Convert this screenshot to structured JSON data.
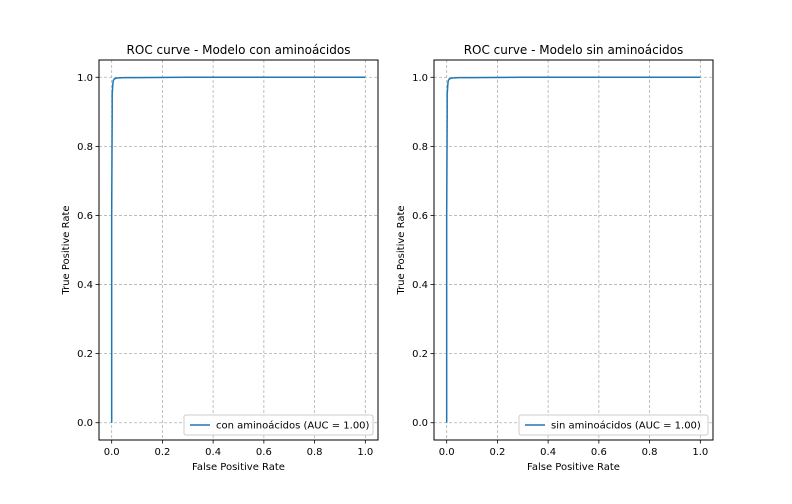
{
  "figure": {
    "background": "#ffffff"
  },
  "chart_data": [
    {
      "type": "line",
      "title": "ROC curve - Modelo con aminoácidos",
      "xlabel": "False Positive Rate",
      "ylabel": "True Positive Rate",
      "xlim": [
        -0.05,
        1.05
      ],
      "ylim": [
        -0.05,
        1.05
      ],
      "xticks": [
        0.0,
        0.2,
        0.4,
        0.6,
        0.8,
        1.0
      ],
      "yticks": [
        0.0,
        0.2,
        0.4,
        0.6,
        0.8,
        1.0
      ],
      "tick_labels_x": [
        "0.0",
        "0.2",
        "0.4",
        "0.6",
        "0.8",
        "1.0"
      ],
      "tick_labels_y": [
        "0.0",
        "0.2",
        "0.4",
        "0.6",
        "0.8",
        "1.0"
      ],
      "grid": true,
      "grid_style": "dashed",
      "legend_position": "lower-right",
      "series": [
        {
          "name": "con aminoácidos (AUC = 1.00)",
          "color": "#1f77b4",
          "x": [
            0.0,
            0.0,
            0.002,
            0.002,
            0.004,
            0.006,
            0.01,
            0.02,
            0.05,
            0.1,
            0.3,
            0.5,
            0.7,
            1.0
          ],
          "y": [
            0.0,
            0.6,
            0.9,
            0.95,
            0.975,
            0.99,
            0.995,
            0.998,
            0.999,
            0.999,
            1.0,
            1.0,
            1.0,
            1.0
          ]
        }
      ]
    },
    {
      "type": "line",
      "title": "ROC curve - Modelo sin aminoácidos",
      "xlabel": "False Positive Rate",
      "ylabel": "True Positive Rate",
      "xlim": [
        -0.05,
        1.05
      ],
      "ylim": [
        -0.05,
        1.05
      ],
      "xticks": [
        0.0,
        0.2,
        0.4,
        0.6,
        0.8,
        1.0
      ],
      "yticks": [
        0.0,
        0.2,
        0.4,
        0.6,
        0.8,
        1.0
      ],
      "tick_labels_x": [
        "0.0",
        "0.2",
        "0.4",
        "0.6",
        "0.8",
        "1.0"
      ],
      "tick_labels_y": [
        "0.0",
        "0.2",
        "0.4",
        "0.6",
        "0.8",
        "1.0"
      ],
      "grid": true,
      "grid_style": "dashed",
      "legend_position": "lower-right",
      "series": [
        {
          "name": "sin aminoácidos (AUC = 1.00)",
          "color": "#1f77b4",
          "x": [
            0.0,
            0.0,
            0.002,
            0.002,
            0.004,
            0.006,
            0.01,
            0.02,
            0.05,
            0.1,
            0.3,
            0.5,
            0.7,
            1.0
          ],
          "y": [
            0.0,
            0.6,
            0.9,
            0.95,
            0.975,
            0.99,
            0.995,
            0.998,
            0.999,
            0.999,
            1.0,
            1.0,
            1.0,
            1.0
          ]
        }
      ]
    }
  ]
}
